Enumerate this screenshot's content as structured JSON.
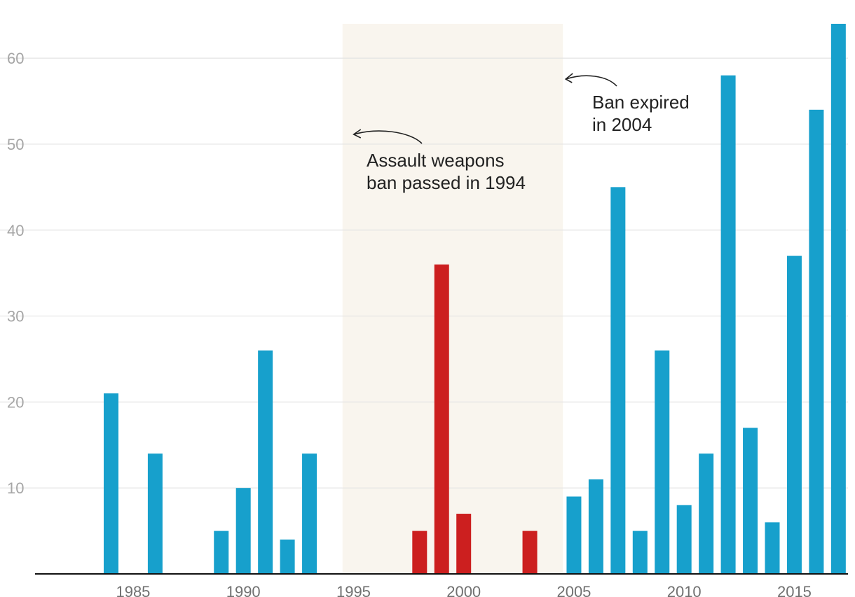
{
  "chart_data": {
    "type": "bar",
    "title": "",
    "xlabel": "",
    "ylabel": "",
    "ylim": [
      0,
      64
    ],
    "xlim": [
      1981.5,
      2017.5
    ],
    "grid": true,
    "yticks": [
      10,
      20,
      30,
      40,
      50,
      60
    ],
    "xticks": [
      1985,
      1990,
      1995,
      2000,
      2005,
      2010,
      2015
    ],
    "colors": {
      "normal": "#17a0cc",
      "ban_period": "#cc1f1f",
      "ban_shade": "#f9f5ee"
    },
    "ban_period": {
      "start": 1994.5,
      "end": 2004.5
    },
    "x": [
      1984,
      1986,
      1989,
      1990,
      1991,
      1992,
      1993,
      1998,
      1999,
      2000,
      2003,
      2005,
      2006,
      2007,
      2008,
      2009,
      2010,
      2011,
      2012,
      2013,
      2014,
      2015,
      2016,
      2017
    ],
    "values": [
      21,
      14,
      5,
      10,
      26,
      4,
      14,
      5,
      36,
      7,
      5,
      9,
      11,
      45,
      5,
      26,
      8,
      14,
      58,
      17,
      6,
      37,
      54,
      64
    ],
    "annotations": [
      {
        "lines": [
          "Assault weapons",
          "ban passed in 1994"
        ],
        "points_to": 1994.5
      },
      {
        "lines": [
          "Ban expired",
          "in 2004"
        ],
        "points_to": 2004.5
      }
    ]
  }
}
